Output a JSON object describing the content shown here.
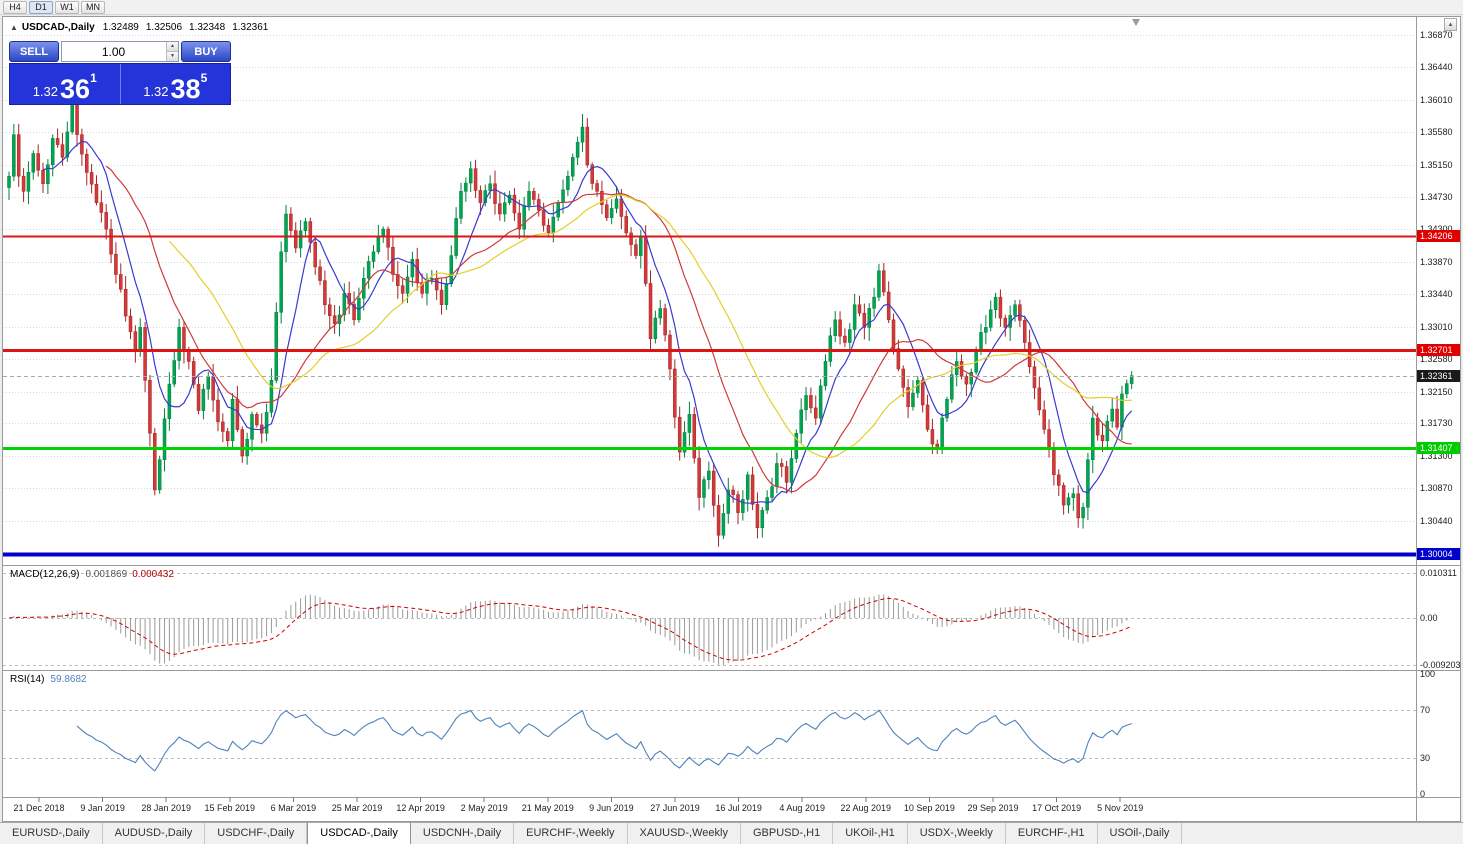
{
  "timeframe_bar": {
    "items": [
      "H4",
      "D1",
      "W1",
      "MN"
    ],
    "active": "D1"
  },
  "icons": {
    "oct_toggle": "▲",
    "scroll_up": "▲",
    "spinner_up": "▲",
    "spinner_down": "▼"
  },
  "chart_header": {
    "symbol": "USDCAD-,Daily",
    "open": "1.32489",
    "high": "1.32506",
    "low": "1.32348",
    "close": "1.32361"
  },
  "trade_panel": {
    "sell_label": "SELL",
    "buy_label": "BUY",
    "volume": "1.00",
    "sell_price": {
      "prefix": "1.32",
      "big": "36",
      "sup": "1"
    },
    "buy_price": {
      "prefix": "1.32",
      "big": "38",
      "sup": "5"
    }
  },
  "price_axis": {
    "labels": [
      "1.36870",
      "1.36440",
      "1.36010",
      "1.35580",
      "1.35150",
      "1.34730",
      "1.34300",
      "1.33870",
      "1.33440",
      "1.33010",
      "1.32580",
      "1.32150",
      "1.31730",
      "1.31300",
      "1.30870",
      "1.30440"
    ],
    "tags": [
      {
        "text": "1.34206",
        "price": 1.34206,
        "bg": "#e00000",
        "fg": "#ffffff"
      },
      {
        "text": "1.32701",
        "price": 1.32701,
        "bg": "#e00000",
        "fg": "#ffffff"
      },
      {
        "text": "1.32361",
        "price": 1.32361,
        "bg": "#1a1a1a",
        "fg": "#ffffff"
      },
      {
        "text": "1.31407",
        "price": 1.31407,
        "bg": "#00cc00",
        "fg": "#ffffff"
      },
      {
        "text": "1.30004",
        "price": 1.30004,
        "bg": "#0000cc",
        "fg": "#ffffff"
      }
    ]
  },
  "price_panel": {
    "hlines": [
      {
        "price": 1.34206,
        "color": "#dd1414",
        "width": 2
      },
      {
        "price": 1.32701,
        "color": "#dd1414",
        "width": 3
      },
      {
        "price": 1.31407,
        "color": "#00d400",
        "width": 3
      },
      {
        "price": 1.30004,
        "color": "#0000c8",
        "width": 4
      },
      {
        "price": 1.32361,
        "color": "#a8a8a8",
        "width": 1,
        "dashed": true
      }
    ]
  },
  "macd_panel": {
    "title": "MACD(12,26,9)",
    "value_main": "0.001869",
    "value_signal": "0.000432",
    "axis": [
      "0.010311",
      "0.00",
      "-0.009203"
    ]
  },
  "rsi_panel": {
    "title": "RSI(14)",
    "value": "59.8682",
    "axis": [
      "100",
      "70",
      "30",
      "0"
    ],
    "levels": [
      70,
      30
    ]
  },
  "date_axis": {
    "labels": [
      "21 Dec 2018",
      "9 Jan 2019",
      "28 Jan 2019",
      "15 Feb 2019",
      "6 Mar 2019",
      "25 Mar 2019",
      "12 Apr 2019",
      "2 May 2019",
      "21 May 2019",
      "9 Jun 2019",
      "27 Jun 2019",
      "16 Jul 2019",
      "4 Aug 2019",
      "22 Aug 2019",
      "10 Sep 2019",
      "29 Sep 2019",
      "17 Oct 2019",
      "5 Nov 2019"
    ]
  },
  "bottom_tabs": {
    "tabs": [
      "EURUSD-,Daily",
      "AUDUSD-,Daily",
      "USDCHF-,Daily",
      "USDCAD-,Daily",
      "USDCNH-,Daily",
      "EURCHF-,Weekly",
      "XAUUSD-,Weekly",
      "GBPUSD-,H1",
      "UKOil-,H1",
      "USDX-,Weekly",
      "EURCHF-,H1",
      "USOil-,Daily"
    ],
    "active": "USDCAD-,Daily"
  },
  "chart_data": {
    "type": "candlestick",
    "symbol": "USDCAD",
    "timeframe": "Daily",
    "bars": 232,
    "price_range_visible": {
      "top": 1.37,
      "bottom": 1.299
    },
    "last_bar": {
      "open": 1.32489,
      "high": 1.32506,
      "low": 1.32348,
      "close": 1.32361
    },
    "horizontal_levels": [
      1.34206,
      1.32701,
      1.31407,
      1.30004
    ],
    "close_anchors": [
      [
        0,
        1.35
      ],
      [
        1,
        1.3555
      ],
      [
        2,
        1.35
      ],
      [
        3,
        1.348
      ],
      [
        5,
        1.353
      ],
      [
        7,
        1.349
      ],
      [
        9,
        1.355
      ],
      [
        11,
        1.3525
      ],
      [
        13,
        1.3595
      ],
      [
        14,
        1.3555
      ],
      [
        16,
        1.3505
      ],
      [
        18,
        1.3465
      ],
      [
        20,
        1.343
      ],
      [
        22,
        1.337
      ],
      [
        24,
        1.3315
      ],
      [
        26,
        1.327
      ],
      [
        27,
        1.33
      ],
      [
        28,
        1.323
      ],
      [
        29,
        1.316
      ],
      [
        30,
        1.3085
      ],
      [
        31,
        1.3125
      ],
      [
        33,
        1.3225
      ],
      [
        35,
        1.33
      ],
      [
        37,
        1.3255
      ],
      [
        39,
        1.319
      ],
      [
        41,
        1.3235
      ],
      [
        43,
        1.3175
      ],
      [
        45,
        1.315
      ],
      [
        46,
        1.3205
      ],
      [
        48,
        1.313
      ],
      [
        50,
        1.3185
      ],
      [
        52,
        1.316
      ],
      [
        54,
        1.323
      ],
      [
        55,
        1.332
      ],
      [
        56,
        1.34
      ],
      [
        57,
        1.345
      ],
      [
        59,
        1.3405
      ],
      [
        61,
        1.344
      ],
      [
        63,
        1.338
      ],
      [
        65,
        1.333
      ],
      [
        67,
        1.3305
      ],
      [
        69,
        1.3345
      ],
      [
        71,
        1.331
      ],
      [
        73,
        1.3365
      ],
      [
        75,
        1.34
      ],
      [
        77,
        1.343
      ],
      [
        79,
        1.337
      ],
      [
        81,
        1.3345
      ],
      [
        83,
        1.339
      ],
      [
        85,
        1.3345
      ],
      [
        87,
        1.3365
      ],
      [
        89,
        1.333
      ],
      [
        91,
        1.3395
      ],
      [
        93,
        1.348
      ],
      [
        95,
        1.351
      ],
      [
        97,
        1.3465
      ],
      [
        99,
        1.349
      ],
      [
        101,
        1.345
      ],
      [
        103,
        1.3475
      ],
      [
        105,
        1.343
      ],
      [
        107,
        1.348
      ],
      [
        109,
        1.3455
      ],
      [
        111,
        1.3425
      ],
      [
        113,
        1.3465
      ],
      [
        115,
        1.35
      ],
      [
        117,
        1.3545
      ],
      [
        118,
        1.3565
      ],
      [
        119,
        1.3515
      ],
      [
        121,
        1.348
      ],
      [
        123,
        1.3445
      ],
      [
        125,
        1.347
      ],
      [
        127,
        1.3425
      ],
      [
        129,
        1.3395
      ],
      [
        130,
        1.342
      ],
      [
        132,
        1.3285
      ],
      [
        134,
        1.3325
      ],
      [
        136,
        1.3245
      ],
      [
        138,
        1.3135
      ],
      [
        140,
        1.3185
      ],
      [
        142,
        1.3075
      ],
      [
        144,
        1.311
      ],
      [
        146,
        1.3025
      ],
      [
        148,
        1.3085
      ],
      [
        150,
        1.3055
      ],
      [
        152,
        1.3105
      ],
      [
        154,
        1.3035
      ],
      [
        156,
        1.3075
      ],
      [
        158,
        1.312
      ],
      [
        160,
        1.3095
      ],
      [
        162,
        1.316
      ],
      [
        164,
        1.321
      ],
      [
        166,
        1.318
      ],
      [
        168,
        1.3255
      ],
      [
        170,
        1.331
      ],
      [
        172,
        1.328
      ],
      [
        174,
        1.333
      ],
      [
        176,
        1.33
      ],
      [
        178,
        1.334
      ],
      [
        179,
        1.3375
      ],
      [
        181,
        1.331
      ],
      [
        183,
        1.3245
      ],
      [
        185,
        1.3195
      ],
      [
        187,
        1.323
      ],
      [
        189,
        1.3165
      ],
      [
        191,
        1.314
      ],
      [
        193,
        1.3205
      ],
      [
        195,
        1.3255
      ],
      [
        197,
        1.3225
      ],
      [
        199,
        1.327
      ],
      [
        201,
        1.33
      ],
      [
        203,
        1.334
      ],
      [
        205,
        1.33
      ],
      [
        207,
        1.333
      ],
      [
        209,
        1.328
      ],
      [
        211,
        1.322
      ],
      [
        213,
        1.3165
      ],
      [
        215,
        1.3105
      ],
      [
        217,
        1.3065
      ],
      [
        219,
        1.308
      ],
      [
        220,
        1.3048
      ],
      [
        221,
        1.3062
      ],
      [
        222,
        1.3125
      ],
      [
        223,
        1.318
      ],
      [
        225,
        1.315
      ],
      [
        227,
        1.3192
      ],
      [
        228,
        1.3168
      ],
      [
        229,
        1.3212
      ],
      [
        231,
        1.32361
      ]
    ],
    "moving_averages": [
      {
        "period": 8,
        "color": "#3a3ad0"
      },
      {
        "period": 21,
        "color": "#cc3b3b"
      },
      {
        "period": 34,
        "color": "#e3cf2a"
      }
    ],
    "indicators": [
      {
        "name": "MACD",
        "params": [
          12,
          26,
          9
        ],
        "current_main": 0.001869,
        "current_signal": 0.000432
      },
      {
        "name": "RSI",
        "params": [
          14
        ],
        "current": 59.8682
      }
    ],
    "colors": {
      "up": "#00a552",
      "up_border": "#00803e",
      "down": "#d23a3a",
      "down_border": "#a82222",
      "grid": "#d9d9d9",
      "macd_hist": "#9a9a9a",
      "macd_signal": "#cc0000",
      "rsi_line": "#4f81bd",
      "level_dash": "#bdbdbd"
    }
  }
}
